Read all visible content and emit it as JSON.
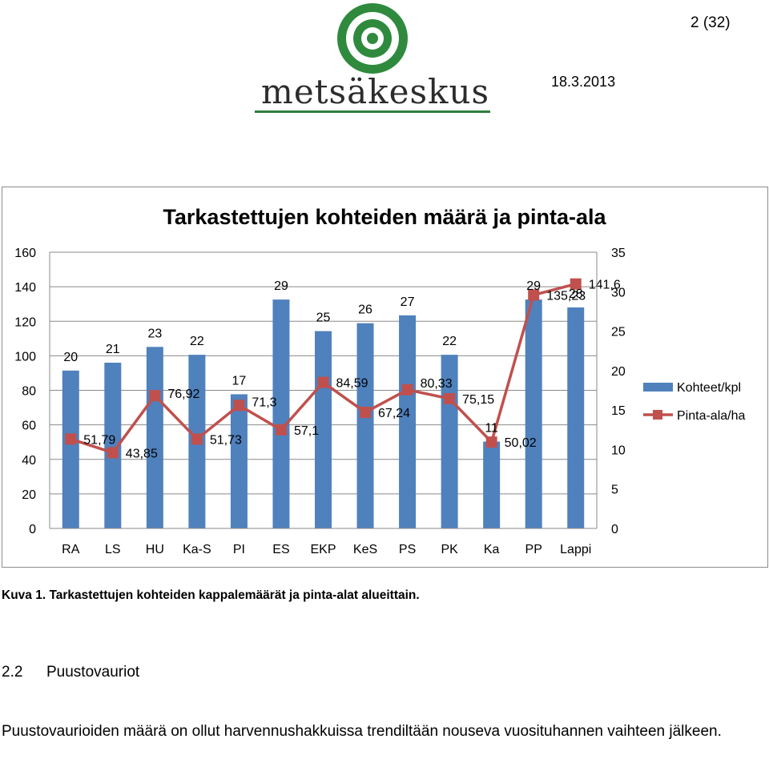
{
  "header": {
    "page_number": "2 (32)",
    "date": "18.3.2013",
    "logo_text": "metsäkeskus"
  },
  "chart_data": {
    "type": "bar",
    "title": "Tarkastettujen kohteiden määrä ja pinta-ala",
    "categories": [
      "RA",
      "LS",
      "HU",
      "Ka-S",
      "PI",
      "ES",
      "EKP",
      "KeS",
      "PS",
      "PK",
      "Ka",
      "PP",
      "Lappi"
    ],
    "series": [
      {
        "name": "Kohteet/kpl",
        "kind": "bar",
        "axis": "right",
        "color": "#4f81bd",
        "values": [
          20,
          21,
          23,
          22,
          17,
          29,
          25,
          26,
          27,
          22,
          11,
          29,
          28
        ],
        "labels": [
          "20",
          "21",
          "23",
          "22",
          "17",
          "29",
          "25",
          "26",
          "27",
          "22",
          "11",
          "29",
          "28"
        ]
      },
      {
        "name": "Pinta-ala/ha",
        "kind": "line",
        "axis": "left",
        "color": "#c0504d",
        "values": [
          51.79,
          43.85,
          76.92,
          51.73,
          71.3,
          57.1,
          84.59,
          67.24,
          80.33,
          75.15,
          50.02,
          135.23,
          141.6
        ],
        "labels": [
          "51,79",
          "43,85",
          "76,92",
          "51,73",
          "71,3",
          "57,1",
          "84,59",
          "67,24",
          "80,33",
          "75,15",
          "50,02",
          "135,23",
          "141,6"
        ]
      }
    ],
    "y_left": {
      "range": [
        0,
        160
      ],
      "ticks": [
        "0",
        "20",
        "40",
        "60",
        "80",
        "100",
        "120",
        "140",
        "160"
      ]
    },
    "y_right": {
      "range": [
        0,
        35
      ],
      "ticks": [
        "0",
        "5",
        "10",
        "15",
        "20",
        "25",
        "30",
        "35"
      ]
    },
    "grid": true,
    "legend": "right"
  },
  "caption": "Kuva 1. Tarkastettujen kohteiden kappalemäärät ja pinta-alat alueittain.",
  "section": {
    "number": "2.2",
    "title": "Puustovauriot"
  },
  "body_text": "Puustovaurioiden määrä on ollut harvennushakkuissa trendiltään nouseva vuosituhannen vaihteen jälkeen."
}
